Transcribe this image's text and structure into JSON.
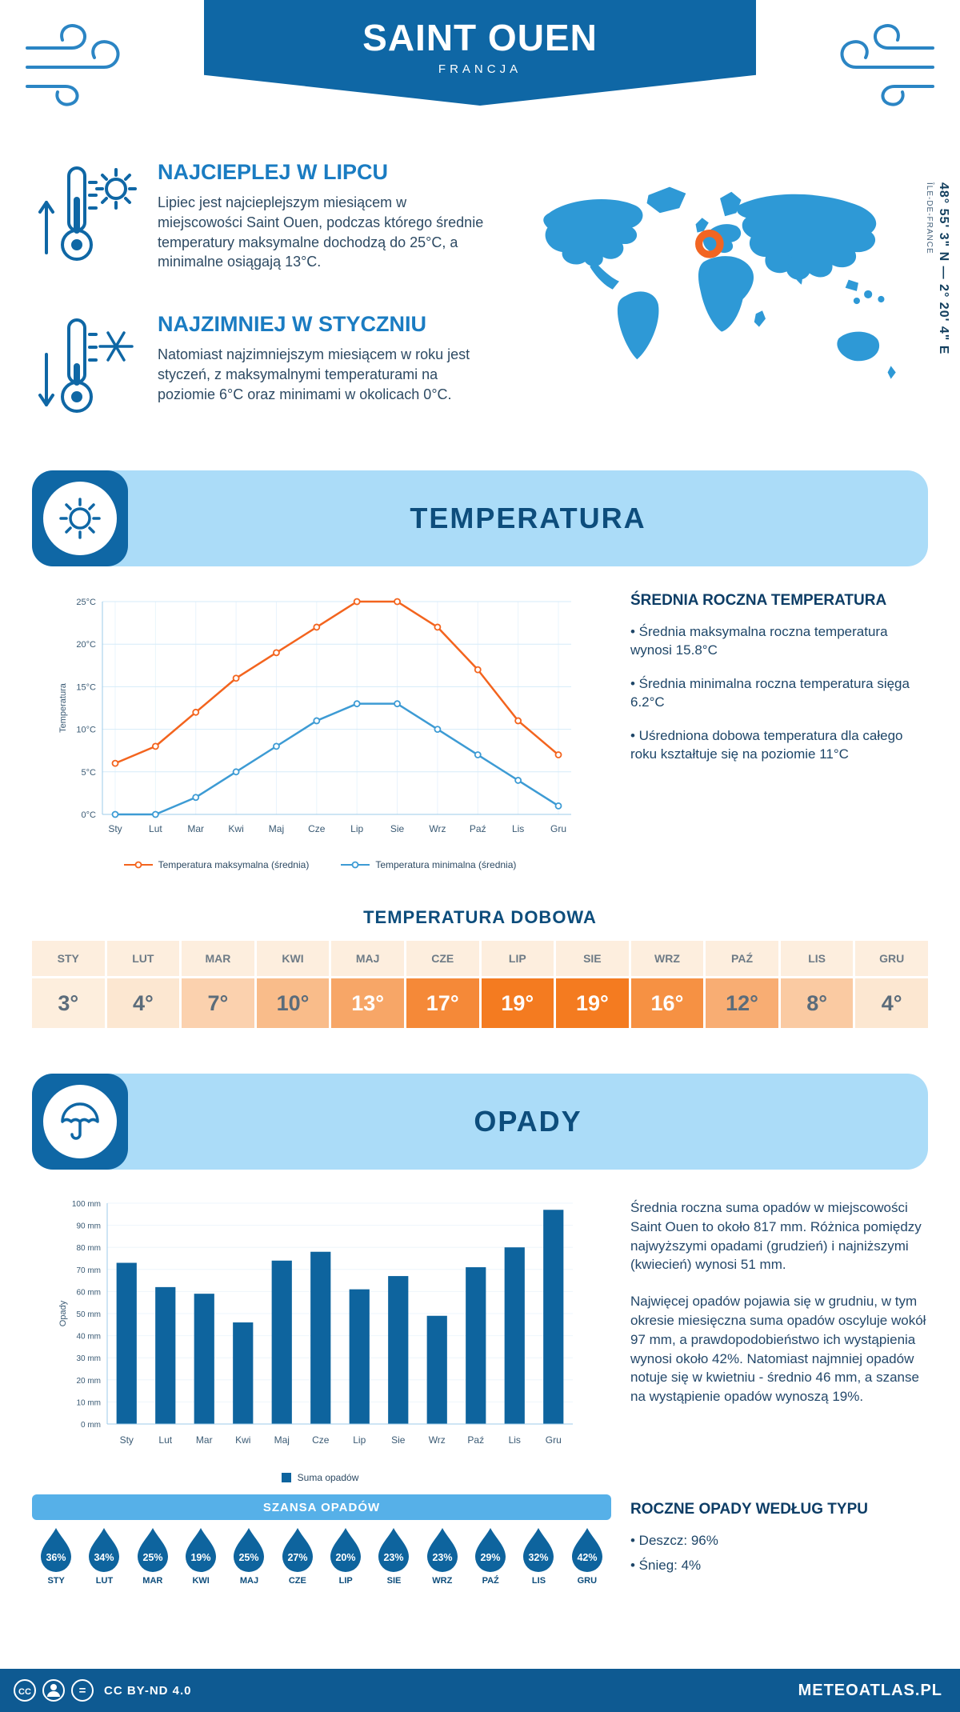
{
  "meta": {
    "title": "SAINT OUEN",
    "subtitle": "FRANCJA"
  },
  "coords": {
    "region": "ÎLE-DE-FRANCE",
    "line1": "48° 55' 3\" N — 2° 20' 4\" E"
  },
  "warm": {
    "heading": "NAJCIEPLEJ W LIPCU",
    "text": "Lipiec jest najcieplejszym miesiącem w miejscowości Saint Ouen, podczas którego średnie temperatury maksymalne dochodzą do 25°C, a minimalne osiągają 13°C."
  },
  "cold": {
    "heading": "NAJZIMNIEJ W STYCZNIU",
    "text": "Natomiast najzimniejszym miesiącem w roku jest styczeń, z maksymalnymi temperaturami na poziomie 6°C oraz minimami w okolicach 0°C."
  },
  "sections": {
    "temperature": "TEMPERATURA",
    "daily": "TEMPERATURA DOBOWA",
    "precipitation": "OPADY",
    "chance": "SZANSA OPADÓW"
  },
  "temp_summary": {
    "heading": "ŚREDNIA ROCZNA TEMPERATURA",
    "bullets": [
      "• Średnia maksymalna roczna temperatura wynosi 15.8°C",
      "• Średnia minimalna roczna temperatura sięga 6.2°C",
      "• Uśredniona dobowa temperatura dla całego roku kształtuje się na poziomie 11°C"
    ]
  },
  "chart_data": [
    {
      "type": "line",
      "title": "Temperatura",
      "categories": [
        "Sty",
        "Lut",
        "Mar",
        "Kwi",
        "Maj",
        "Cze",
        "Lip",
        "Sie",
        "Wrz",
        "Paź",
        "Lis",
        "Gru"
      ],
      "series": [
        {
          "name": "Temperatura maksymalna (średnia)",
          "color": "#f3641e",
          "values": [
            6,
            8,
            12,
            16,
            19,
            22,
            25,
            25,
            22,
            17,
            11,
            7
          ]
        },
        {
          "name": "Temperatura minimalna (średnia)",
          "color": "#3d9bd4",
          "values": [
            0,
            0,
            2,
            5,
            8,
            11,
            13,
            13,
            10,
            7,
            4,
            1
          ]
        }
      ],
      "xlabel": "",
      "ylabel": "Temperatura",
      "ylim": [
        0,
        25
      ],
      "ytick_step": 5,
      "ytick_suffix": "°C",
      "grid": true,
      "legend_position": "bottom"
    },
    {
      "type": "bar",
      "title": "Opady",
      "categories": [
        "Sty",
        "Lut",
        "Mar",
        "Kwi",
        "Maj",
        "Cze",
        "Lip",
        "Sie",
        "Wrz",
        "Paź",
        "Lis",
        "Gru"
      ],
      "values": [
        73,
        62,
        59,
        46,
        74,
        78,
        61,
        67,
        49,
        71,
        80,
        97
      ],
      "color": "#0e649e",
      "legend": "Suma opadów",
      "xlabel": "",
      "ylabel": "Opady",
      "ylim": [
        0,
        100
      ],
      "ytick_step": 10,
      "ytick_suffix": " mm",
      "grid": true,
      "legend_position": "bottom"
    }
  ],
  "daily_temps": {
    "months": [
      "STY",
      "LUT",
      "MAR",
      "KWI",
      "MAJ",
      "CZE",
      "LIP",
      "SIE",
      "WRZ",
      "PAŹ",
      "LIS",
      "GRU"
    ],
    "values": [
      "3°",
      "4°",
      "7°",
      "10°",
      "13°",
      "17°",
      "19°",
      "19°",
      "16°",
      "12°",
      "8°",
      "4°"
    ],
    "colors": [
      "#fdeedd",
      "#fce7d1",
      "#fbd1ae",
      "#f9bc8a",
      "#f7a667",
      "#f58938",
      "#f47b20",
      "#f47b20",
      "#f69143",
      "#f8ad73",
      "#facaa2",
      "#fce7d1"
    ],
    "text_colors": [
      "#5b6c7b",
      "#5b6c7b",
      "#5b6c7b",
      "#5b6c7b",
      "#ffffff",
      "#ffffff",
      "#ffffff",
      "#ffffff",
      "#ffffff",
      "#5b6c7b",
      "#5b6c7b",
      "#5b6c7b"
    ]
  },
  "precip": {
    "p1": "Średnia roczna suma opadów w miejscowości Saint Ouen to około 817 mm. Różnica pomiędzy najwyższymi opadami (grudzień) i najniższymi (kwiecień) wynosi 51 mm.",
    "p2": "Najwięcej opadów pojawia się w grudniu, w tym okresie miesięczna suma opadów oscyluje wokół 97 mm, a prawdopodobieństwo ich wystąpienia wynosi około 42%. Natomiast najmniej opadów notuje się w kwietniu - średnio 46 mm, a szanse na wystąpienie opadów wynoszą 19%."
  },
  "chance": {
    "color": "#0e649e",
    "months": [
      "STY",
      "LUT",
      "MAR",
      "KWI",
      "MAJ",
      "CZE",
      "LIP",
      "SIE",
      "WRZ",
      "PAŹ",
      "LIS",
      "GRU"
    ],
    "values": [
      "36%",
      "34%",
      "25%",
      "19%",
      "25%",
      "27%",
      "20%",
      "23%",
      "23%",
      "29%",
      "32%",
      "42%"
    ]
  },
  "precip_type": {
    "heading": "ROCZNE OPADY WEDŁUG TYPU",
    "bullets": [
      "• Deszcz: 96%",
      "• Śnieg: 4%"
    ]
  },
  "footer": {
    "license": "CC BY-ND 4.0",
    "brand": "METEOATLAS.PL"
  }
}
